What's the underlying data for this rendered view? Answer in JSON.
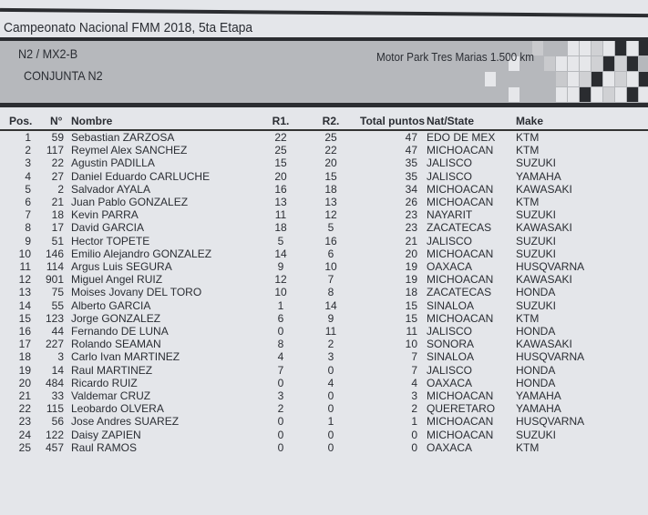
{
  "header": {
    "title": "Campeonato Nacional FMM 2018, 5ta Etapa",
    "class": "N2 / MX2-B",
    "subtitle": "CONJUNTA N2",
    "venue": "Motor Park Tres Marias 1.500 km"
  },
  "table": {
    "columns": {
      "pos": "Pos.",
      "num": "N°",
      "name": "Nombre",
      "r1": "R1.",
      "r2": "R2.",
      "total": "Total puntos",
      "nat": "Nat/State",
      "make": "Make"
    },
    "rows": [
      {
        "pos": "1",
        "num": "59",
        "name": "Sebastian ZARZOSA",
        "r1": "22",
        "r2": "25",
        "total": "47",
        "nat": "EDO DE MEX",
        "make": "KTM"
      },
      {
        "pos": "2",
        "num": "117",
        "name": "Reymel Alex SANCHEZ",
        "r1": "25",
        "r2": "22",
        "total": "47",
        "nat": "MICHOACAN",
        "make": "KTM"
      },
      {
        "pos": "3",
        "num": "22",
        "name": "Agustin PADILLA",
        "r1": "15",
        "r2": "20",
        "total": "35",
        "nat": "JALISCO",
        "make": "SUZUKI"
      },
      {
        "pos": "4",
        "num": "27",
        "name": "Daniel Eduardo CARLUCHE",
        "r1": "20",
        "r2": "15",
        "total": "35",
        "nat": "JALISCO",
        "make": "YAMAHA"
      },
      {
        "pos": "5",
        "num": "2",
        "name": "Salvador AYALA",
        "r1": "16",
        "r2": "18",
        "total": "34",
        "nat": "MICHOACAN",
        "make": "KAWASAKI"
      },
      {
        "pos": "6",
        "num": "21",
        "name": "Juan Pablo GONZALEZ",
        "r1": "13",
        "r2": "13",
        "total": "26",
        "nat": "MICHOACAN",
        "make": "KTM"
      },
      {
        "pos": "7",
        "num": "18",
        "name": "Kevin PARRA",
        "r1": "11",
        "r2": "12",
        "total": "23",
        "nat": "NAYARIT",
        "make": "SUZUKI"
      },
      {
        "pos": "8",
        "num": "17",
        "name": "David GARCIA",
        "r1": "18",
        "r2": "5",
        "total": "23",
        "nat": "ZACATECAS",
        "make": "KAWASAKI"
      },
      {
        "pos": "9",
        "num": "51",
        "name": "Hector TOPETE",
        "r1": "5",
        "r2": "16",
        "total": "21",
        "nat": "JALISCO",
        "make": "SUZUKI"
      },
      {
        "pos": "10",
        "num": "146",
        "name": "Emilio Alejandro GONZALEZ",
        "r1": "14",
        "r2": "6",
        "total": "20",
        "nat": "MICHOACAN",
        "make": "SUZUKI"
      },
      {
        "pos": "11",
        "num": "114",
        "name": "Argus Luis SEGURA",
        "r1": "9",
        "r2": "10",
        "total": "19",
        "nat": "OAXACA",
        "make": "HUSQVARNA"
      },
      {
        "pos": "12",
        "num": "901",
        "name": "Miguel Angel RUIZ",
        "r1": "12",
        "r2": "7",
        "total": "19",
        "nat": "MICHOACAN",
        "make": "KAWASAKI"
      },
      {
        "pos": "13",
        "num": "75",
        "name": "Moises Jovany DEL TORO",
        "r1": "10",
        "r2": "8",
        "total": "18",
        "nat": "ZACATECAS",
        "make": "HONDA"
      },
      {
        "pos": "14",
        "num": "55",
        "name": "Alberto GARCIA",
        "r1": "1",
        "r2": "14",
        "total": "15",
        "nat": "SINALOA",
        "make": "SUZUKI"
      },
      {
        "pos": "15",
        "num": "123",
        "name": "Jorge GONZALEZ",
        "r1": "6",
        "r2": "9",
        "total": "15",
        "nat": "MICHOACAN",
        "make": "KTM"
      },
      {
        "pos": "16",
        "num": "44",
        "name": "Fernando DE LUNA",
        "r1": "0",
        "r2": "11",
        "total": "11",
        "nat": "JALISCO",
        "make": "HONDA"
      },
      {
        "pos": "17",
        "num": "227",
        "name": "Rolando SEAMAN",
        "r1": "8",
        "r2": "2",
        "total": "10",
        "nat": "SONORA",
        "make": "KAWASAKI"
      },
      {
        "pos": "18",
        "num": "3",
        "name": "Carlo Ivan MARTINEZ",
        "r1": "4",
        "r2": "3",
        "total": "7",
        "nat": "SINALOA",
        "make": "HUSQVARNA"
      },
      {
        "pos": "19",
        "num": "14",
        "name": "Raul MARTINEZ",
        "r1": "7",
        "r2": "0",
        "total": "7",
        "nat": "JALISCO",
        "make": "HONDA"
      },
      {
        "pos": "20",
        "num": "484",
        "name": "Ricardo RUIZ",
        "r1": "0",
        "r2": "4",
        "total": "4",
        "nat": "OAXACA",
        "make": "HONDA"
      },
      {
        "pos": "21",
        "num": "33",
        "name": "Valdemar CRUZ",
        "r1": "3",
        "r2": "0",
        "total": "3",
        "nat": "MICHOACAN",
        "make": "YAMAHA"
      },
      {
        "pos": "22",
        "num": "115",
        "name": "Leobardo OLVERA",
        "r1": "2",
        "r2": "0",
        "total": "2",
        "nat": "QUERETARO",
        "make": "YAMAHA"
      },
      {
        "pos": "23",
        "num": "56",
        "name": "Jose Andres SUAREZ",
        "r1": "0",
        "r2": "1",
        "total": "1",
        "nat": "MICHOACAN",
        "make": "HUSQVARNA"
      },
      {
        "pos": "24",
        "num": "122",
        "name": "Daisy ZAPIEN",
        "r1": "0",
        "r2": "0",
        "total": "0",
        "nat": "MICHOACAN",
        "make": "SUZUKI"
      },
      {
        "pos": "25",
        "num": "457",
        "name": "Raul RAMOS",
        "r1": "0",
        "r2": "0",
        "total": "0",
        "nat": "OAXACA",
        "make": "KTM"
      }
    ]
  }
}
